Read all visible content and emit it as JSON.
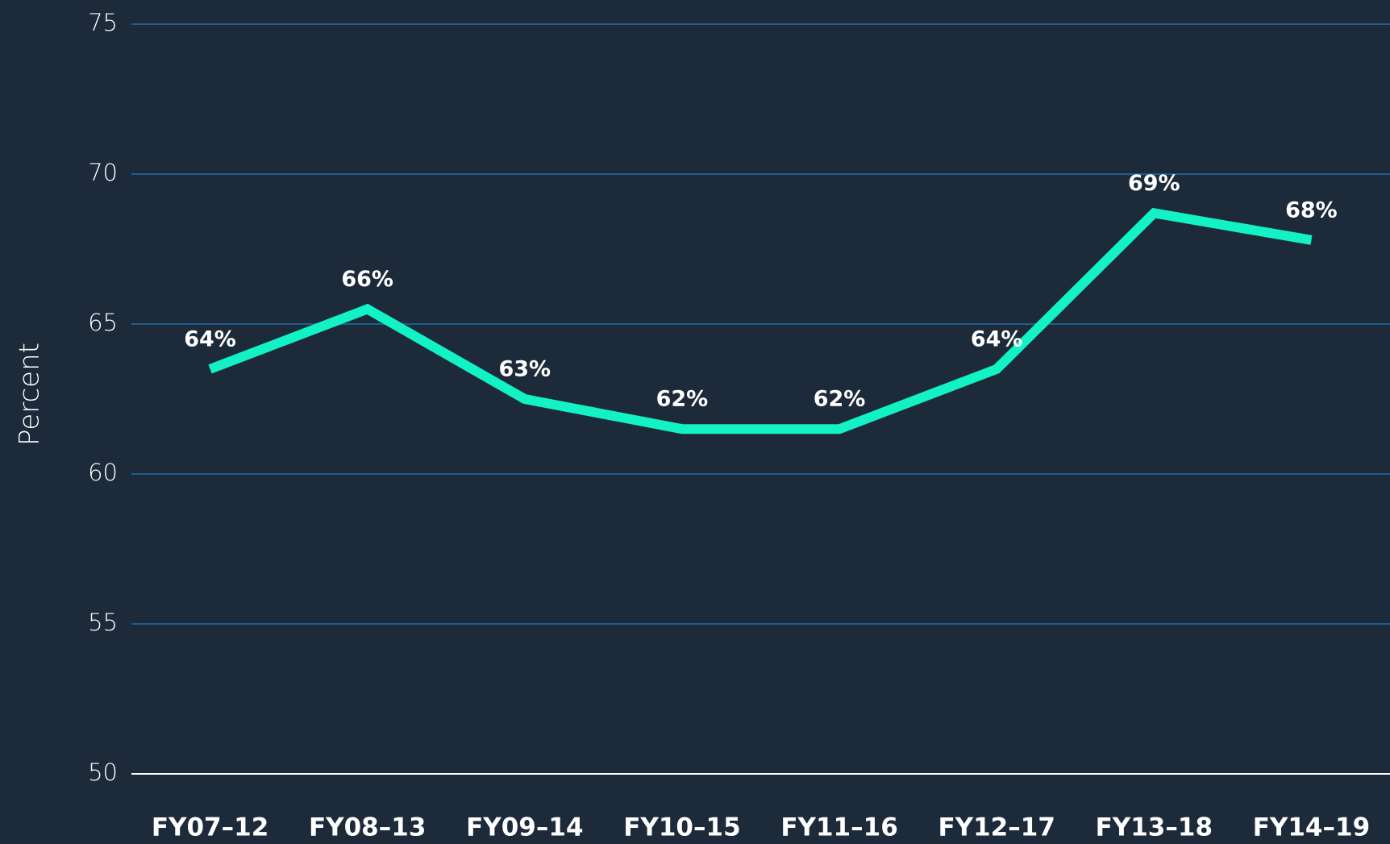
{
  "chart_data": {
    "type": "line",
    "y_label": "Percent",
    "categories": [
      "FY07–12",
      "FY08–13",
      "FY09–14",
      "FY10–15",
      "FY11–16",
      "FY12–17",
      "FY13–18",
      "FY14–19"
    ],
    "series": [
      {
        "color": "#12f2c4",
        "values": [
          63.5,
          65.5,
          62.5,
          61.5,
          61.5,
          63.5,
          68.7,
          67.8
        ],
        "value_labels": [
          "64%",
          "66%",
          "63%",
          "62%",
          "62%",
          "64%",
          "69%",
          "68%"
        ]
      }
    ],
    "ylim": [
      50,
      75
    ],
    "yticks": [
      50,
      55,
      60,
      65,
      70,
      75
    ],
    "grid": true
  }
}
